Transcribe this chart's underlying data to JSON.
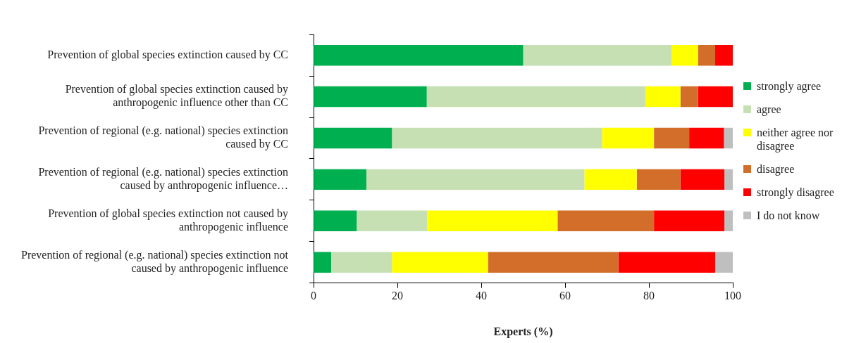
{
  "chart_data": {
    "type": "bar",
    "orientation": "horizontal",
    "stacked": true,
    "xlabel": "Experts (%)",
    "categories": [
      "Prevention of global species extinction caused by CC",
      "Prevention of global species extinction caused by anthropogenic influence other than CC",
      "Prevention of regional (e.g. national) species extinction caused by CC",
      "Prevention of regional (e.g. national) species extinction caused by anthropogenic influence…",
      "Prevention of global species extinction not caused by anthropogenic influence",
      "Prevention of regional (e.g. national) species extinction not caused by anthropogenic influence"
    ],
    "series": [
      {
        "name": "strongly agree",
        "color": "#00b050",
        "values": [
          50,
          27,
          18.7,
          12.6,
          10.3,
          4.2
        ]
      },
      {
        "name": "agree",
        "color": "#c6e0b4",
        "values": [
          35.4,
          52.2,
          50.1,
          52,
          16.8,
          14.5
        ]
      },
      {
        "name": "neither agree nor disagree",
        "color": "#ffff00",
        "values": [
          6.3,
          8.3,
          12.4,
          12.5,
          31.1,
          22.9
        ]
      },
      {
        "name": "disagree",
        "color": "#d26e2a",
        "values": [
          4.1,
          4.2,
          8.4,
          10.4,
          23,
          31.1
        ]
      },
      {
        "name": "strongly disagree",
        "color": "#ff0000",
        "values": [
          4.2,
          8.3,
          8.3,
          10.5,
          16.8,
          23.1
        ]
      },
      {
        "name": "I do not know",
        "color": "#bfbfbf",
        "values": [
          0,
          0,
          2.1,
          2,
          2,
          4.2
        ]
      }
    ],
    "xlim": [
      0,
      100
    ],
    "xticks": [
      0,
      20,
      40,
      60,
      80,
      100
    ],
    "grid": false,
    "legend": "right"
  }
}
